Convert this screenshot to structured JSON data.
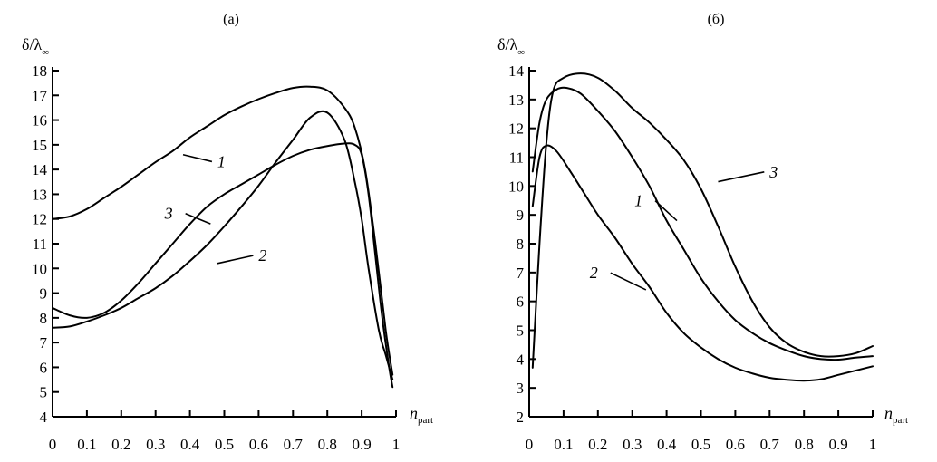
{
  "chart_data": [
    {
      "type": "line",
      "panel_label": "(а)",
      "ylabel": {
        "main": "δ/λ",
        "sub": "∞"
      },
      "xlabel": {
        "main": "n",
        "sub": "part"
      },
      "xlim": [
        0,
        1
      ],
      "ylim": [
        4,
        18
      ],
      "xticks": [
        0,
        0.1,
        0.2,
        0.3,
        0.4,
        0.5,
        0.6,
        0.7,
        0.8,
        0.9,
        1
      ],
      "xtick_labels": [
        "0",
        "0.1",
        "0.2",
        "0.3",
        "0.4",
        "0.5",
        "0.6",
        "0.7",
        "0.8",
        "0.9",
        "1"
      ],
      "yticks": [
        4,
        5,
        6,
        7,
        8,
        9,
        10,
        11,
        12,
        13,
        14,
        15,
        16,
        17,
        18
      ],
      "ytick_labels": [
        "4",
        "5",
        "6",
        "7",
        "8",
        "9",
        "10",
        "11",
        "12",
        "13",
        "14",
        "15",
        "16",
        "17",
        "18"
      ],
      "grid": false,
      "series": [
        {
          "name": "1",
          "x": [
            0,
            0.05,
            0.1,
            0.15,
            0.2,
            0.25,
            0.3,
            0.35,
            0.4,
            0.45,
            0.5,
            0.55,
            0.6,
            0.65,
            0.7,
            0.75,
            0.8,
            0.85,
            0.88,
            0.91,
            0.94,
            0.97,
            0.99
          ],
          "y": [
            12.0,
            12.1,
            12.4,
            12.85,
            13.3,
            13.8,
            14.3,
            14.75,
            15.3,
            15.75,
            16.2,
            16.55,
            16.85,
            17.1,
            17.3,
            17.35,
            17.2,
            16.5,
            15.7,
            14.0,
            11.0,
            7.5,
            5.7
          ],
          "label_at": [
            0.48,
            14.1
          ],
          "leader_from": [
            0.38,
            14.6
          ]
        },
        {
          "name": "2",
          "x": [
            0,
            0.05,
            0.1,
            0.15,
            0.2,
            0.25,
            0.3,
            0.35,
            0.4,
            0.45,
            0.5,
            0.55,
            0.6,
            0.65,
            0.7,
            0.75,
            0.8,
            0.85,
            0.88,
            0.9,
            0.92,
            0.95,
            0.97,
            0.99
          ],
          "y": [
            7.6,
            7.65,
            7.85,
            8.1,
            8.4,
            8.8,
            9.2,
            9.7,
            10.3,
            10.95,
            11.7,
            12.5,
            13.35,
            14.3,
            15.2,
            16.1,
            16.3,
            15.2,
            13.5,
            12.0,
            10.0,
            7.5,
            6.5,
            5.5
          ],
          "label_at": [
            0.6,
            10.3
          ],
          "leader_from": [
            0.48,
            10.2
          ]
        },
        {
          "name": "3",
          "x": [
            0,
            0.05,
            0.1,
            0.15,
            0.2,
            0.25,
            0.3,
            0.35,
            0.4,
            0.45,
            0.5,
            0.55,
            0.6,
            0.65,
            0.7,
            0.75,
            0.8,
            0.85,
            0.88,
            0.9,
            0.92,
            0.94,
            0.96,
            0.98,
            0.99
          ],
          "y": [
            8.4,
            8.1,
            8.0,
            8.2,
            8.7,
            9.4,
            10.2,
            11.0,
            11.8,
            12.5,
            13.0,
            13.4,
            13.8,
            14.2,
            14.55,
            14.8,
            14.95,
            15.05,
            15.0,
            14.6,
            13.0,
            10.5,
            8.0,
            6.0,
            5.2
          ],
          "label_at": [
            0.35,
            12.0
          ],
          "leader_from": [
            0.46,
            11.8
          ]
        }
      ]
    },
    {
      "type": "line",
      "panel_label": "(б)",
      "ylabel": {
        "main": "δ/λ",
        "sub": "∞"
      },
      "xlabel": {
        "main": "n",
        "sub": "part"
      },
      "xlim": [
        0,
        1
      ],
      "ylim": [
        2,
        14
      ],
      "xticks": [
        0,
        0.1,
        0.2,
        0.3,
        0.4,
        0.5,
        0.6,
        0.7,
        0.8,
        0.9,
        1
      ],
      "xtick_labels": [
        "0",
        "0.1",
        "0.2",
        "0.3",
        "0.4",
        "0.5",
        "0.6",
        "0.7",
        "0.8",
        "0.9",
        "1"
      ],
      "yticks": [
        2,
        3,
        4,
        5,
        6,
        7,
        8,
        9,
        10,
        11,
        12,
        13,
        14
      ],
      "ytick_labels": [
        "2",
        "3",
        "4",
        "5",
        "6",
        "7",
        "8",
        "9",
        "10",
        "11",
        "12",
        "13",
        "14"
      ],
      "grid": false,
      "series": [
        {
          "name": "1",
          "x": [
            0.01,
            0.03,
            0.05,
            0.08,
            0.11,
            0.15,
            0.2,
            0.25,
            0.3,
            0.35,
            0.4,
            0.45,
            0.5,
            0.55,
            0.6,
            0.65,
            0.7,
            0.75,
            0.8,
            0.85,
            0.9,
            0.95,
            1.0
          ],
          "y": [
            10.5,
            12.2,
            13.0,
            13.35,
            13.4,
            13.2,
            12.6,
            11.9,
            11.0,
            10.0,
            8.8,
            7.8,
            6.8,
            6.0,
            5.35,
            4.9,
            4.55,
            4.3,
            4.1,
            4.0,
            3.98,
            4.05,
            4.1
          ],
          "label_at": [
            0.33,
            9.3
          ],
          "leader_from": [
            0.43,
            8.8
          ]
        },
        {
          "name": "2",
          "x": [
            0.01,
            0.03,
            0.05,
            0.08,
            0.12,
            0.16,
            0.2,
            0.25,
            0.3,
            0.35,
            0.4,
            0.45,
            0.5,
            0.55,
            0.6,
            0.65,
            0.7,
            0.75,
            0.8,
            0.85,
            0.9,
            0.95,
            1.0
          ],
          "y": [
            9.3,
            11.0,
            11.4,
            11.2,
            10.5,
            9.75,
            9.0,
            8.2,
            7.3,
            6.5,
            5.6,
            4.9,
            4.4,
            4.0,
            3.7,
            3.5,
            3.35,
            3.28,
            3.25,
            3.3,
            3.45,
            3.6,
            3.75
          ],
          "label_at": [
            0.2,
            6.8
          ],
          "leader_from": [
            0.34,
            6.4
          ]
        },
        {
          "name": "3",
          "x": [
            0.01,
            0.03,
            0.05,
            0.07,
            0.1,
            0.15,
            0.2,
            0.25,
            0.3,
            0.35,
            0.4,
            0.45,
            0.5,
            0.55,
            0.6,
            0.65,
            0.7,
            0.75,
            0.8,
            0.85,
            0.9,
            0.95,
            1.0
          ],
          "y": [
            3.7,
            8.0,
            11.5,
            13.3,
            13.75,
            13.9,
            13.75,
            13.3,
            12.7,
            12.2,
            11.6,
            10.9,
            9.9,
            8.6,
            7.2,
            6.0,
            5.1,
            4.55,
            4.25,
            4.1,
            4.1,
            4.2,
            4.45
          ],
          "label_at": [
            0.7,
            10.3
          ],
          "leader_from": [
            0.55,
            10.15
          ]
        }
      ]
    }
  ]
}
